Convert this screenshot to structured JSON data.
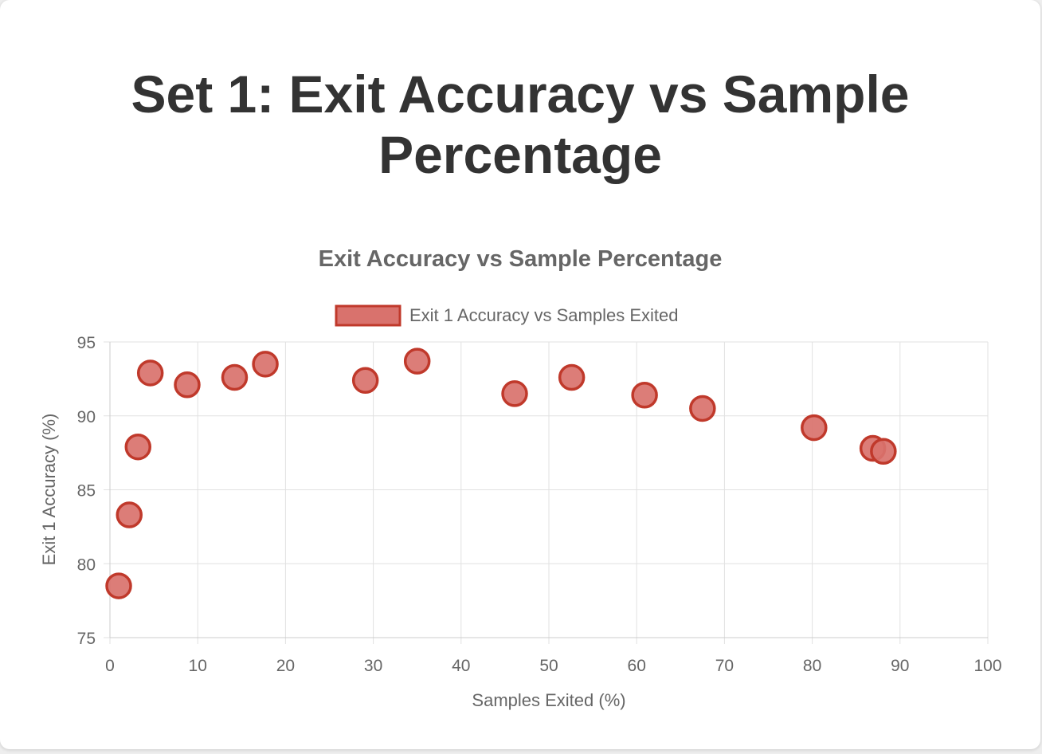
{
  "page": {
    "title": "Set 1: Exit Accuracy vs Sample Percentage"
  },
  "colors": {
    "point_fill": "#d9726d",
    "point_border": "#c0392b",
    "grid": "#e1e1e1",
    "axis_text": "#666666",
    "title_text": "#333333"
  },
  "chart_data": {
    "type": "scatter",
    "title": "Exit Accuracy vs Sample Percentage",
    "xlabel": "Samples Exited (%)",
    "ylabel": "Exit 1 Accuracy (%)",
    "xlim": [
      0,
      100
    ],
    "ylim": [
      75,
      95
    ],
    "xticks": [
      0,
      10,
      20,
      30,
      40,
      50,
      60,
      70,
      80,
      90,
      100
    ],
    "yticks": [
      75,
      80,
      85,
      90,
      95
    ],
    "grid": true,
    "legend_position": "top",
    "series": [
      {
        "name": "Exit 1 Accuracy vs Samples Exited",
        "points": [
          {
            "x": 1.0,
            "y": 78.5
          },
          {
            "x": 2.2,
            "y": 83.3
          },
          {
            "x": 3.2,
            "y": 87.9
          },
          {
            "x": 4.6,
            "y": 92.9
          },
          {
            "x": 8.8,
            "y": 92.1
          },
          {
            "x": 14.2,
            "y": 92.6
          },
          {
            "x": 17.7,
            "y": 93.5
          },
          {
            "x": 29.1,
            "y": 92.4
          },
          {
            "x": 35.0,
            "y": 93.7
          },
          {
            "x": 46.1,
            "y": 91.5
          },
          {
            "x": 52.6,
            "y": 92.6
          },
          {
            "x": 60.9,
            "y": 91.4
          },
          {
            "x": 67.5,
            "y": 90.5
          },
          {
            "x": 80.2,
            "y": 89.2
          },
          {
            "x": 86.9,
            "y": 87.8
          },
          {
            "x": 88.1,
            "y": 87.6
          }
        ]
      }
    ]
  }
}
